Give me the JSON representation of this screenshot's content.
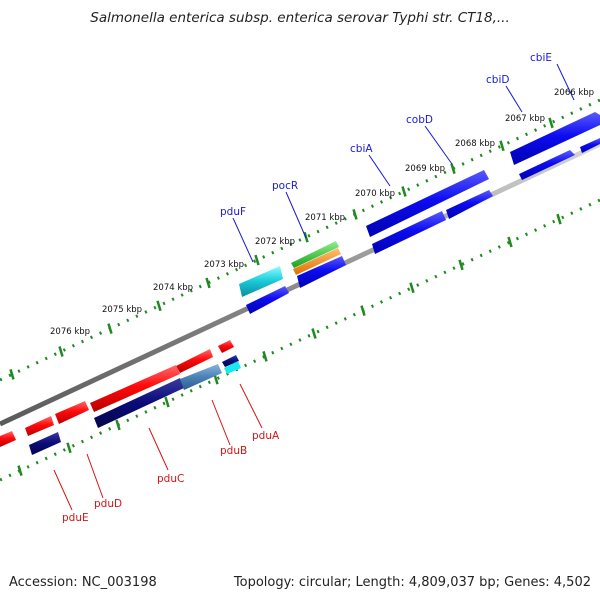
{
  "title": "Salmonella enterica subsp. enterica serovar Typhi str. CT18,...",
  "footer": {
    "accession": "Accession: NC_003198",
    "summary": "Topology: circular; Length: 4,809,037 bp; Genes: 4,502"
  },
  "colors": {
    "forward_label": "#1a1ad6",
    "reverse_label": "#d41414",
    "tick_marks": "#1f8a1f",
    "backbone": "#8c8c8c"
  },
  "kbp_labels": [
    "2066 kbp",
    "2067 kbp",
    "2068 kbp",
    "2069 kbp",
    "2070 kbp",
    "2071 kbp",
    "2072 kbp",
    "2073 kbp",
    "2074 kbp",
    "2075 kbp",
    "2076 kbp"
  ],
  "forward_genes": [
    "cbiE",
    "cbiD",
    "cobD",
    "cbiA",
    "pocR",
    "pduF"
  ],
  "reverse_genes": [
    "pduA",
    "pduB",
    "pduC",
    "pduD",
    "pduE"
  ]
}
